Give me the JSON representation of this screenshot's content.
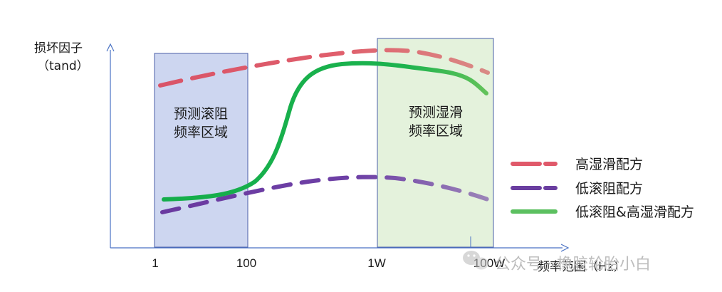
{
  "axes": {
    "y_label_line1": "损坏因子",
    "y_label_line2": "（tand）",
    "x_label": "频率范围（Hz）",
    "x_ticks": [
      "1",
      "100",
      "1W",
      "100W"
    ]
  },
  "regions": {
    "left": {
      "line1": "预测滚阻",
      "line2": "频率区域",
      "fill": "#cdd6f0",
      "stroke": "#4a5fa8"
    },
    "right": {
      "line1": "预测湿滑",
      "line2": "频率区域",
      "fill": "#e4f2dc",
      "stroke": "#4a5fa8"
    }
  },
  "legend": {
    "items": [
      {
        "label": "高湿滑配方",
        "color": "#e0596a",
        "style": "dashed"
      },
      {
        "label": "低滚阻配方",
        "color": "#6a3ea0",
        "style": "dashed"
      },
      {
        "label": "低滚阻&高湿滑配方",
        "color": "#5cc060",
        "style": "solid"
      }
    ]
  },
  "curve_colors": {
    "high_wet": "#e0596a",
    "low_rr": "#6a3ea0",
    "combined": "#16b04c",
    "axis": "#4a72c4"
  },
  "watermark": {
    "text": "公众号 · 橡胶轮胎小白"
  }
}
